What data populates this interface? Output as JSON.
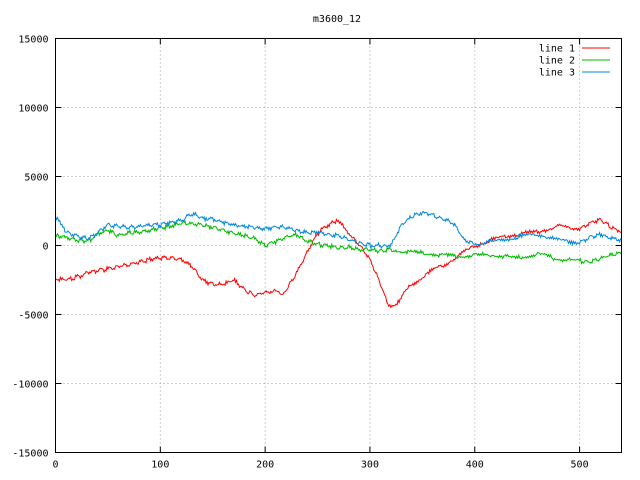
{
  "chart_data": {
    "type": "line",
    "title": "m3600_12",
    "xlabel": "",
    "ylabel": "",
    "xlim": [
      0,
      540
    ],
    "ylim": [
      -15000,
      15000
    ],
    "x_ticks": [
      0,
      100,
      200,
      300,
      400,
      500
    ],
    "y_ticks": [
      -15000,
      -10000,
      -5000,
      0,
      5000,
      10000,
      15000
    ],
    "grid": true,
    "legend_position": "top-right",
    "series": [
      {
        "name": "line 1",
        "color": "#ff0000",
        "x": [
          0,
          10,
          20,
          30,
          40,
          50,
          60,
          70,
          80,
          90,
          100,
          110,
          120,
          130,
          140,
          150,
          160,
          170,
          180,
          190,
          200,
          210,
          215,
          220,
          230,
          240,
          250,
          260,
          265,
          270,
          275,
          280,
          290,
          300,
          310,
          318,
          325,
          340,
          360,
          380,
          400,
          420,
          440,
          460,
          480,
          500,
          510,
          520,
          530,
          540
        ],
        "y": [
          -2400,
          -2500,
          -2300,
          -2000,
          -1800,
          -1700,
          -1500,
          -1400,
          -1200,
          -1000,
          -900,
          -900,
          -1000,
          -1500,
          -2500,
          -2800,
          -2800,
          -2500,
          -3200,
          -3600,
          -3400,
          -3300,
          -3600,
          -3200,
          -2000,
          -500,
          900,
          1500,
          1800,
          1700,
          1400,
          900,
          0,
          -1000,
          -2800,
          -4500,
          -4200,
          -2800,
          -1800,
          -1000,
          0,
          500,
          800,
          1000,
          1400,
          1200,
          1600,
          1900,
          1300,
          1000
        ]
      },
      {
        "name": "line 2",
        "color": "#00bb00",
        "x": [
          0,
          10,
          20,
          30,
          40,
          50,
          60,
          70,
          80,
          90,
          100,
          110,
          120,
          130,
          140,
          150,
          160,
          170,
          180,
          190,
          200,
          210,
          220,
          230,
          240,
          250,
          260,
          270,
          280,
          290,
          300,
          310,
          320,
          340,
          360,
          380,
          400,
          420,
          440,
          460,
          480,
          500,
          510,
          520,
          530,
          540
        ],
        "y": [
          700,
          600,
          400,
          300,
          800,
          1100,
          700,
          900,
          1000,
          1100,
          1300,
          1400,
          1600,
          1600,
          1500,
          1300,
          1100,
          900,
          700,
          500,
          0,
          300,
          600,
          800,
          300,
          100,
          0,
          -200,
          -100,
          -300,
          -300,
          -400,
          -300,
          -500,
          -600,
          -800,
          -700,
          -700,
          -900,
          -600,
          -1000,
          -1100,
          -1200,
          -900,
          -700,
          -500
        ]
      },
      {
        "name": "line 3",
        "color": "#0088dd",
        "x": [
          0,
          5,
          10,
          20,
          30,
          40,
          50,
          60,
          70,
          80,
          90,
          100,
          110,
          120,
          130,
          140,
          150,
          160,
          170,
          180,
          190,
          200,
          210,
          220,
          230,
          240,
          250,
          260,
          270,
          280,
          290,
          300,
          310,
          320,
          330,
          340,
          350,
          360,
          370,
          380,
          390,
          400,
          420,
          440,
          460,
          480,
          500,
          510,
          520,
          530,
          540
        ],
        "y": [
          2200,
          1500,
          1000,
          700,
          500,
          900,
          1500,
          1400,
          1300,
          1400,
          1500,
          1500,
          1700,
          1800,
          2300,
          2000,
          1900,
          1700,
          1500,
          1400,
          1300,
          1200,
          1400,
          1300,
          1100,
          900,
          1000,
          800,
          700,
          400,
          200,
          0,
          0,
          0,
          1500,
          2100,
          2400,
          2200,
          1900,
          1600,
          400,
          100,
          300,
          600,
          800,
          400,
          200,
          600,
          800,
          500,
          400
        ]
      }
    ]
  }
}
